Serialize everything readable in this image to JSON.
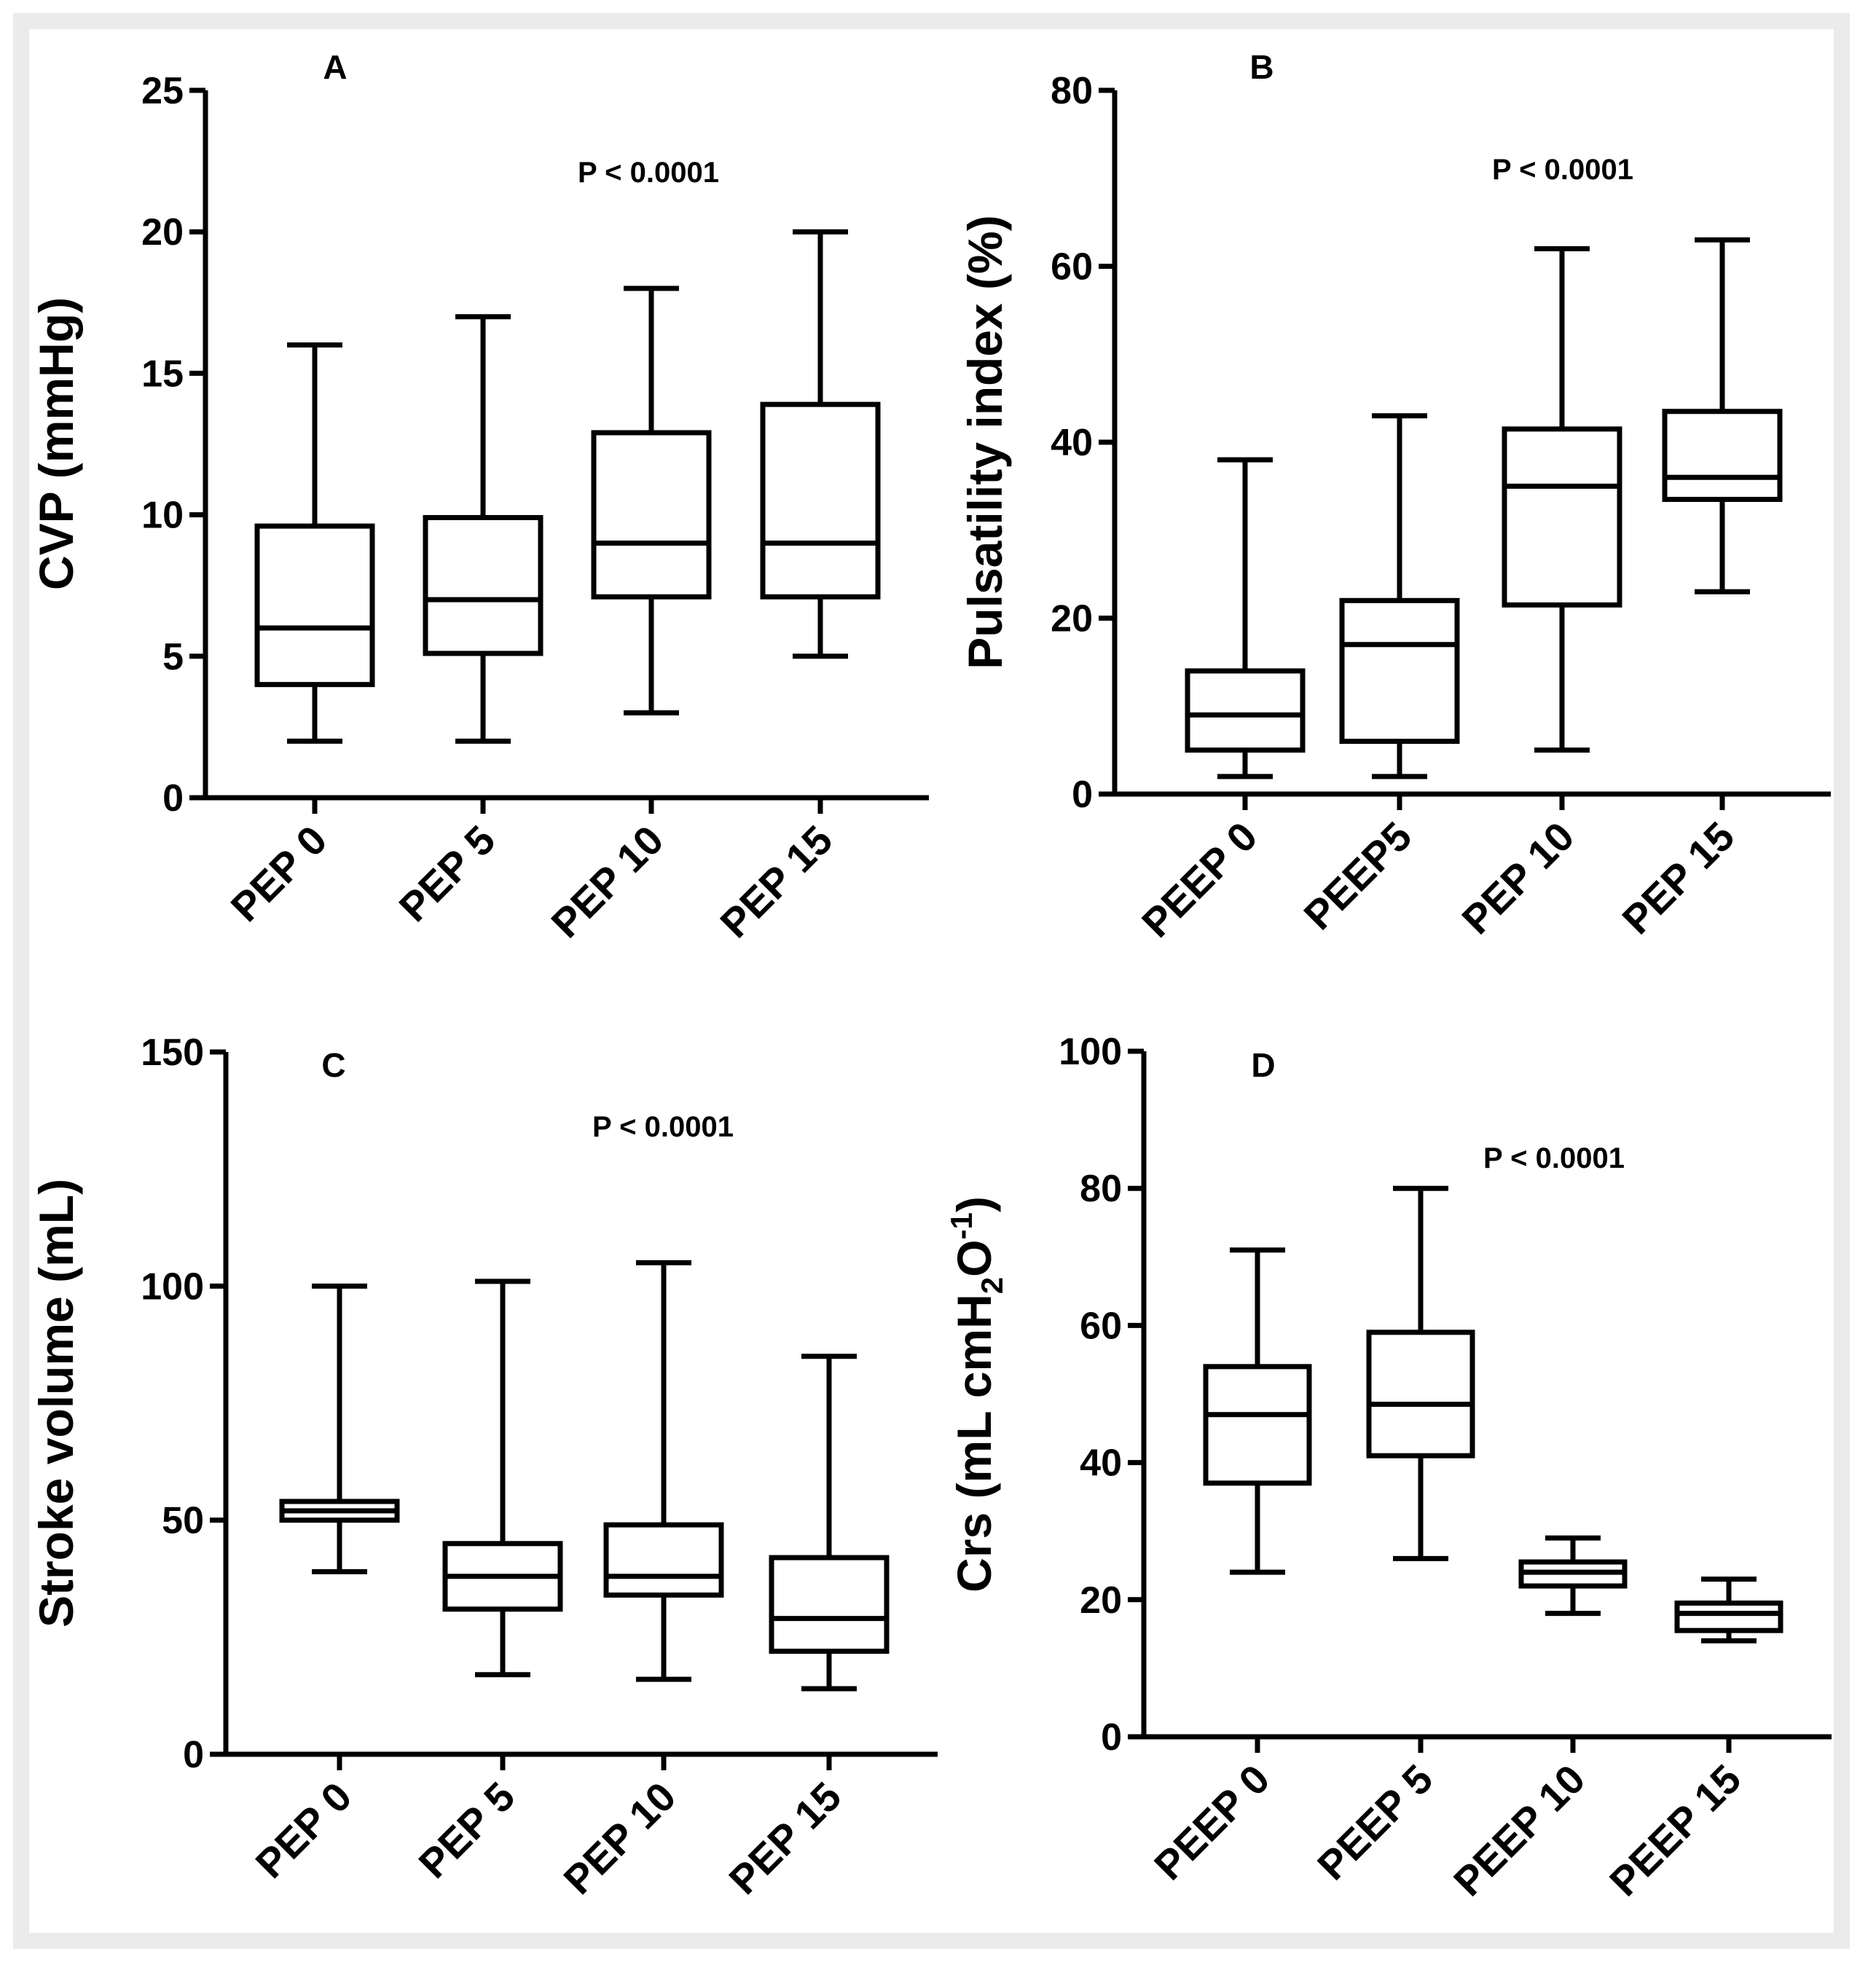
{
  "chart_data": [
    {
      "id": "A",
      "type": "box",
      "panel_label": "A",
      "annotation": "P < 0.0001",
      "ylabel": "CVP (mmHg)",
      "ylim": [
        0,
        25
      ],
      "yticks": [
        0,
        5,
        10,
        15,
        20,
        25
      ],
      "categories": [
        "PEP 0",
        "PEP 5",
        "PEP 10",
        "PEP 15"
      ],
      "boxes": [
        {
          "min": 2,
          "q1": 4,
          "median": 6,
          "q3": 9.6,
          "max": 16
        },
        {
          "min": 2,
          "q1": 5.1,
          "median": 7,
          "q3": 9.9,
          "max": 17
        },
        {
          "min": 3,
          "q1": 7.1,
          "median": 9,
          "q3": 12.9,
          "max": 18
        },
        {
          "min": 5,
          "q1": 7.1,
          "median": 9,
          "q3": 13.9,
          "max": 20
        }
      ]
    },
    {
      "id": "B",
      "type": "box",
      "panel_label": "B",
      "annotation": "P < 0.0001",
      "ylabel": "Pulsatility index (%)",
      "ylim": [
        0,
        80
      ],
      "yticks": [
        0,
        20,
        40,
        60,
        80
      ],
      "categories": [
        "PEEP 0",
        "PEEP5",
        "PEP 10",
        "PEP 15"
      ],
      "boxes": [
        {
          "min": 2,
          "q1": 5,
          "median": 9,
          "q3": 14,
          "max": 38
        },
        {
          "min": 2,
          "q1": 6,
          "median": 17,
          "q3": 22,
          "max": 43
        },
        {
          "min": 5,
          "q1": 21.5,
          "median": 35,
          "q3": 41.5,
          "max": 62
        },
        {
          "min": 23,
          "q1": 33.5,
          "median": 36,
          "q3": 43.5,
          "max": 63
        }
      ]
    },
    {
      "id": "C",
      "type": "box",
      "panel_label": "C",
      "annotation": "P < 0.0001",
      "ylabel": "Stroke volume (mL)",
      "ylim": [
        0,
        150
      ],
      "yticks": [
        0,
        50,
        100,
        150
      ],
      "categories": [
        "PEP 0",
        "PEP 5",
        "PEP 10",
        "PEP 15"
      ],
      "boxes": [
        {
          "min": 39,
          "q1": 50,
          "median": 52,
          "q3": 54,
          "max": 100
        },
        {
          "min": 17,
          "q1": 31,
          "median": 38,
          "q3": 45,
          "max": 101
        },
        {
          "min": 16,
          "q1": 34,
          "median": 38,
          "q3": 49,
          "max": 105
        },
        {
          "min": 14,
          "q1": 22,
          "median": 29,
          "q3": 42,
          "max": 85
        }
      ]
    },
    {
      "id": "D",
      "type": "box",
      "panel_label": "D",
      "annotation": "P < 0.0001",
      "ylabel": "Crs (mL cmH",
      "ylabel_sub": "2",
      "ylabel_mid": "O",
      "ylabel_sup": "-1",
      "ylabel_end": ")",
      "ylim": [
        0,
        100
      ],
      "yticks": [
        0,
        20,
        40,
        60,
        80,
        100
      ],
      "categories": [
        "PEEP 0",
        "PEEP 5",
        "PEEP 10",
        "PEEP 15"
      ],
      "boxes": [
        {
          "min": 24,
          "q1": 37,
          "median": 47,
          "q3": 54,
          "max": 71
        },
        {
          "min": 26,
          "q1": 41,
          "median": 48.5,
          "q3": 59,
          "max": 80
        },
        {
          "min": 18,
          "q1": 22,
          "median": 24,
          "q3": 25.5,
          "max": 29
        },
        {
          "min": 14,
          "q1": 15.5,
          "median": 18,
          "q3": 19.5,
          "max": 23
        }
      ]
    }
  ]
}
